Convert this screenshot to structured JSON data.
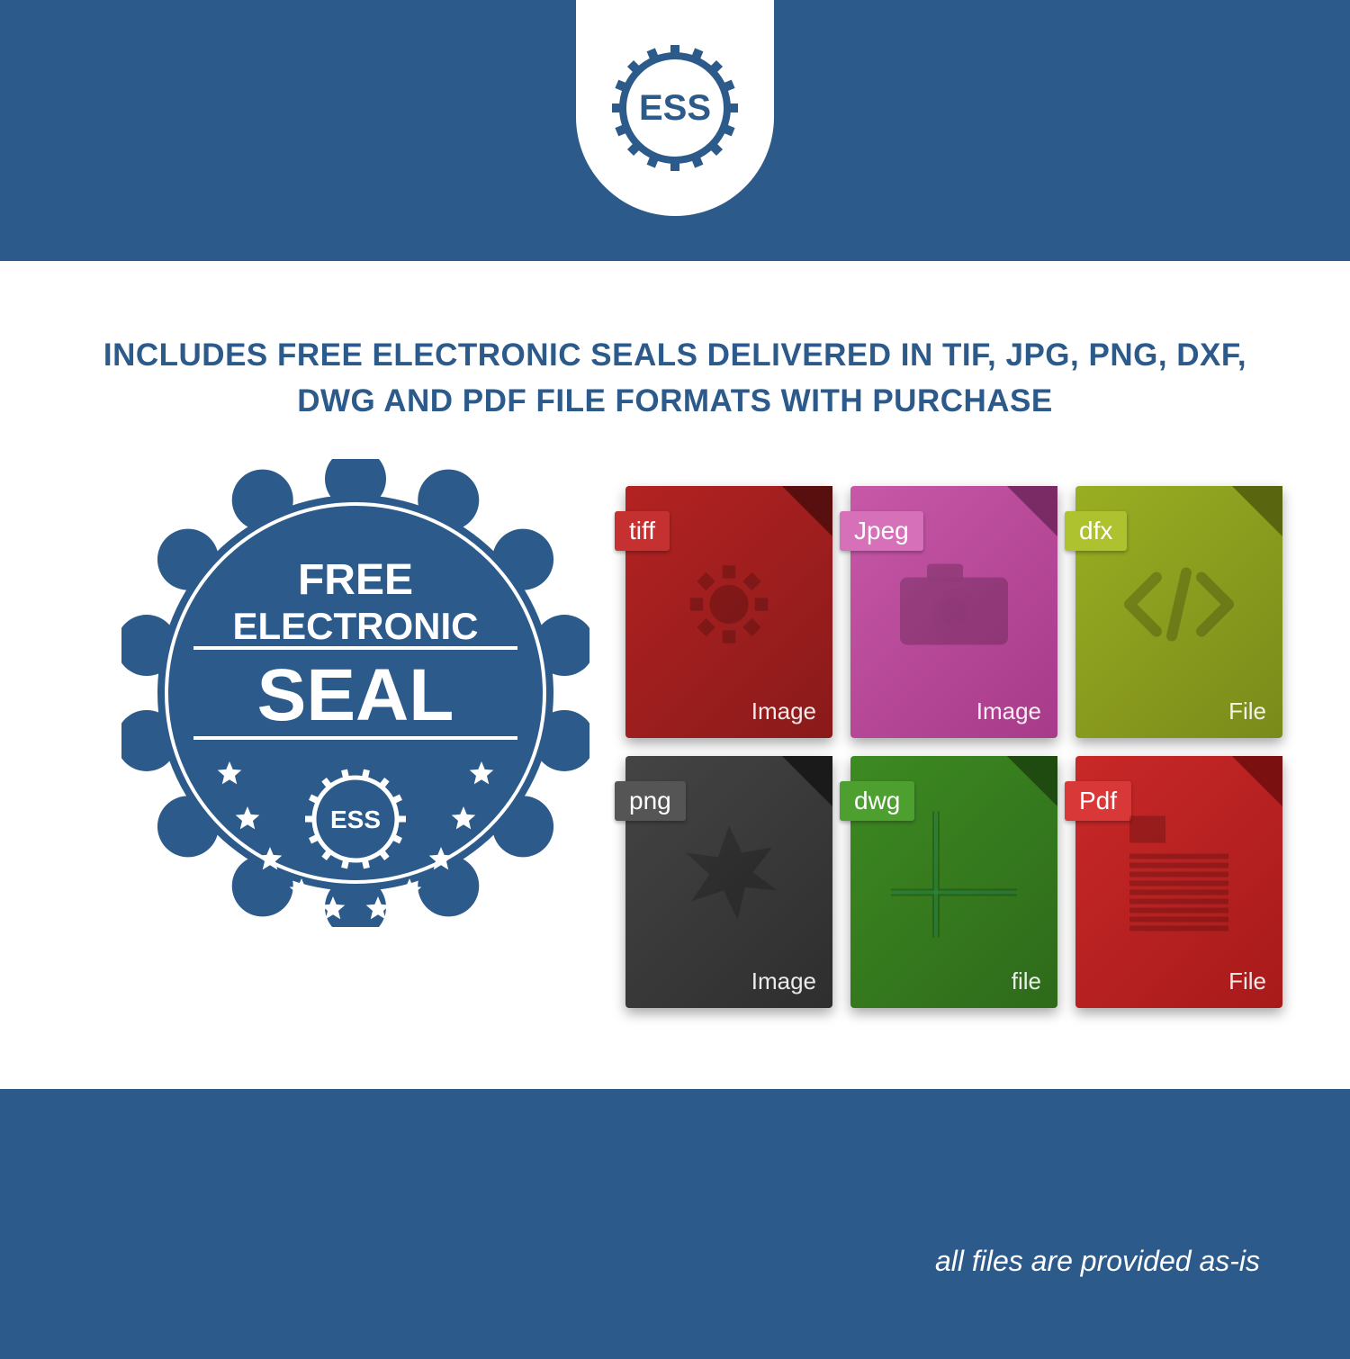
{
  "colors": {
    "brand_blue": "#2c5a8a",
    "white": "#ffffff"
  },
  "logo": {
    "text": "ESS"
  },
  "headline": "INCLUDES FREE ELECTRONIC SEALS DELIVERED IN TIF, JPG, PNG, DXF, DWG AND PDF FILE FORMATS WITH PURCHASE",
  "seal_badge": {
    "line1": "FREE",
    "line2": "ELECTRONIC",
    "line3": "SEAL",
    "inner_text": "ESS",
    "star_count": 10,
    "fill": "#2c5a8a",
    "text_color": "#ffffff"
  },
  "file_icons": [
    {
      "tag": "tiff",
      "footer": "Image",
      "bg": "#8a1a1a",
      "bg2": "#b32222",
      "tag_bg": "#c53030",
      "fold": "#5a0f0f",
      "glyph": "gear"
    },
    {
      "tag": "Jpeg",
      "footer": "Image",
      "bg": "#a83a8a",
      "bg2": "#c758a8",
      "tag_bg": "#d670b8",
      "fold": "#7a2a65",
      "glyph": "camera"
    },
    {
      "tag": "dfx",
      "footer": "File",
      "bg": "#7a8a1a",
      "bg2": "#9aae22",
      "tag_bg": "#aec22f",
      "fold": "#5a660f",
      "glyph": "code"
    },
    {
      "tag": "png",
      "footer": "Image",
      "bg": "#2e2e2e",
      "bg2": "#444444",
      "tag_bg": "#555555",
      "fold": "#1a1a1a",
      "glyph": "starburst"
    },
    {
      "tag": "dwg",
      "footer": "file",
      "bg": "#2e6a1a",
      "bg2": "#3d8a22",
      "tag_bg": "#4da030",
      "fold": "#1f4a10",
      "glyph": "grid"
    },
    {
      "tag": "Pdf",
      "footer": "File",
      "bg": "#a81a1a",
      "bg2": "#c82828",
      "tag_bg": "#d83838",
      "fold": "#7a1010",
      "glyph": "doc"
    }
  ],
  "footer_note": "all files are provided as-is"
}
